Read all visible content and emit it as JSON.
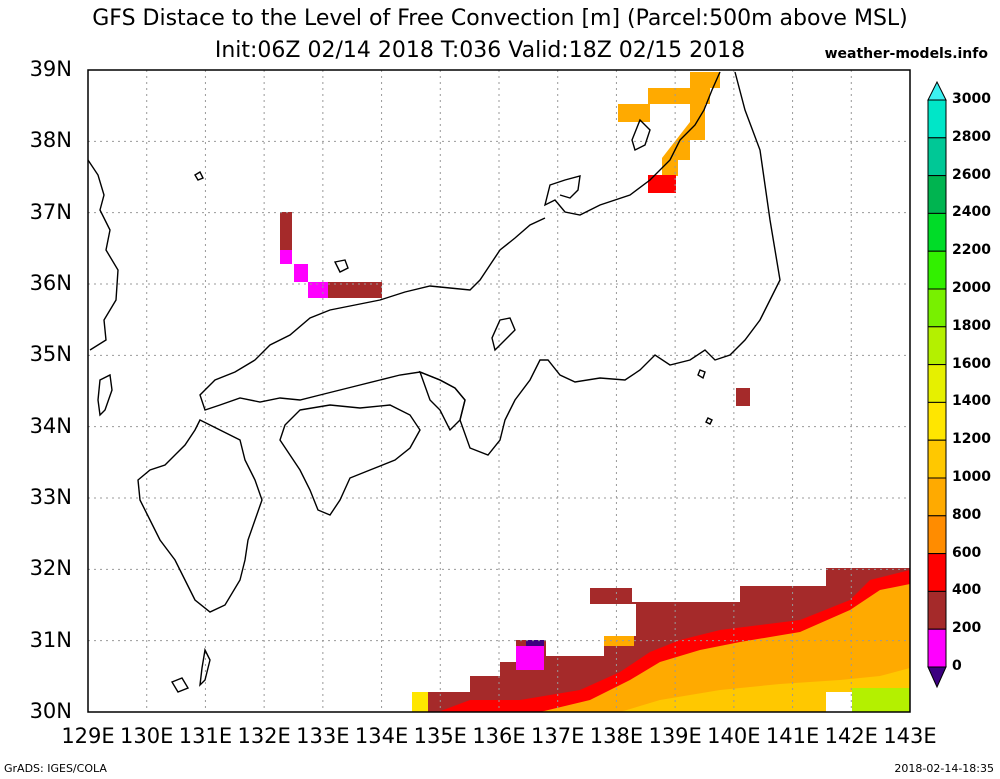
{
  "header": {
    "title": "GFS Distace to the Level of Free Convection [m] (Parcel:500m above MSL)",
    "subtitle": "Init:06Z 02/14 2018 T:036 Valid:18Z 02/15 2018",
    "site": "weather-models.info"
  },
  "map": {
    "lat_labels": [
      "39N",
      "38N",
      "37N",
      "36N",
      "35N",
      "34N",
      "33N",
      "32N",
      "31N",
      "30N"
    ],
    "lon_labels": [
      "129E",
      "130E",
      "131E",
      "132E",
      "133E",
      "134E",
      "135E",
      "136E",
      "137E",
      "138E",
      "139E",
      "140E",
      "141E",
      "142E",
      "143E"
    ],
    "lat_range": [
      30,
      39
    ],
    "lon_range": [
      129,
      143
    ],
    "grid": true
  },
  "colorbar": {
    "labels": [
      "3000",
      "2800",
      "2600",
      "2400",
      "2200",
      "2000",
      "1800",
      "1600",
      "1400",
      "1200",
      "1000",
      "800",
      "600",
      "400",
      "200",
      "0"
    ],
    "colors": [
      "#00e6c8",
      "#00c896",
      "#00b450",
      "#00dc28",
      "#32f000",
      "#78f000",
      "#b4f000",
      "#e6f000",
      "#ffe600",
      "#ffc800",
      "#ffaa00",
      "#ff8c00",
      "#ff0000",
      "#a52a2a",
      "#ff00ff",
      "#3c0080"
    ]
  },
  "footer": {
    "left": "GrADS: IGES/COLA",
    "right": "2018-02-14-18:35"
  }
}
